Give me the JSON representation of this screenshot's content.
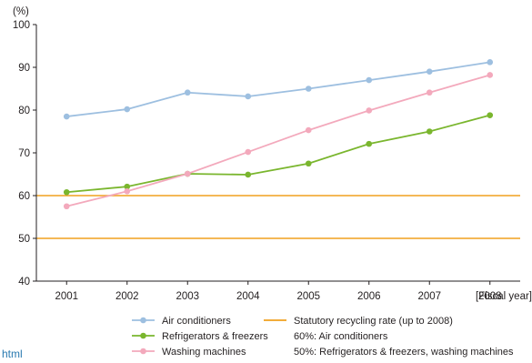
{
  "corner_text": "html",
  "chart_data": {
    "type": "line",
    "y_unit": "(%)",
    "x_unit": "[Fiscal year]",
    "categories": [
      "2001",
      "2002",
      "2003",
      "2004",
      "2005",
      "2006",
      "2007",
      "2008"
    ],
    "ylim": [
      40,
      100
    ],
    "yticks": [
      40,
      50,
      60,
      70,
      80,
      90,
      100
    ],
    "grid": false,
    "legend_placement": "bottom",
    "series": [
      {
        "name": "Air conditioners",
        "color": "#9dbfe0",
        "values": [
          78.5,
          80.2,
          84.1,
          83.2,
          85.0,
          87.0,
          89.0,
          91.2
        ]
      },
      {
        "name": "Refrigerators & freezers",
        "color": "#7ab62e",
        "values": [
          60.8,
          62.1,
          65.1,
          64.9,
          67.5,
          72.1,
          75.0,
          78.8
        ]
      },
      {
        "name": "Washing machines",
        "color": "#f3a9bc",
        "values": [
          57.5,
          61.0,
          65.1,
          70.2,
          75.3,
          79.9,
          84.1,
          88.2
        ]
      }
    ],
    "reference_lines": {
      "name": "Statutory recycling rate (up to 2008)",
      "color": "#f0a01e",
      "lines": [
        {
          "value": 60,
          "label": "60%: Air conditioners"
        },
        {
          "value": 50,
          "label": "50%: Refrigerators & freezers, washing machines"
        }
      ]
    }
  }
}
